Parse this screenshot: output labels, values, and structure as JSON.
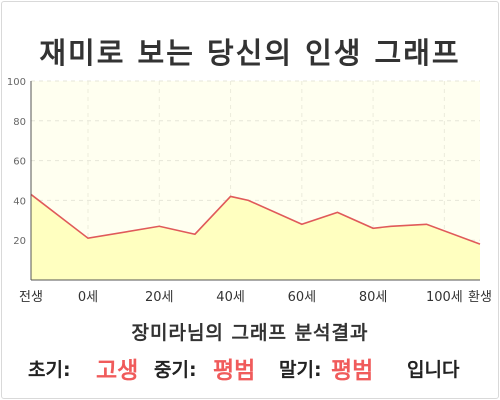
{
  "title": "재미로 보는 당신의 인생 그래프",
  "subtitle": "장미라님의 그래프 분석결과",
  "summary": {
    "early_label": "초기:",
    "early_value": "고생",
    "mid_label": "중기:",
    "mid_value": "평범",
    "late_label": "말기:",
    "late_value": "평범",
    "suffix": "입니다"
  },
  "colors": {
    "line": "#e05a5a",
    "area": "#ffffc0",
    "plot_bg": "#fffff0",
    "accent_text": "#f05b5b"
  },
  "chart_data": {
    "type": "area",
    "title": "",
    "xlabel": "",
    "ylabel": "",
    "ylim": [
      0,
      100
    ],
    "yticks": [
      20,
      40,
      60,
      80,
      100
    ],
    "grid": true,
    "x_tick_labels": [
      "전생",
      "0세",
      "20세",
      "40세",
      "60세",
      "80세",
      "100세",
      "환생"
    ],
    "series": [
      {
        "x": [
          -16,
          0,
          20,
          30,
          40,
          45,
          60,
          70,
          80,
          85,
          95,
          110
        ],
        "values": [
          43,
          21,
          27,
          23,
          42,
          40,
          28,
          34,
          26,
          27,
          28,
          18
        ]
      }
    ]
  }
}
